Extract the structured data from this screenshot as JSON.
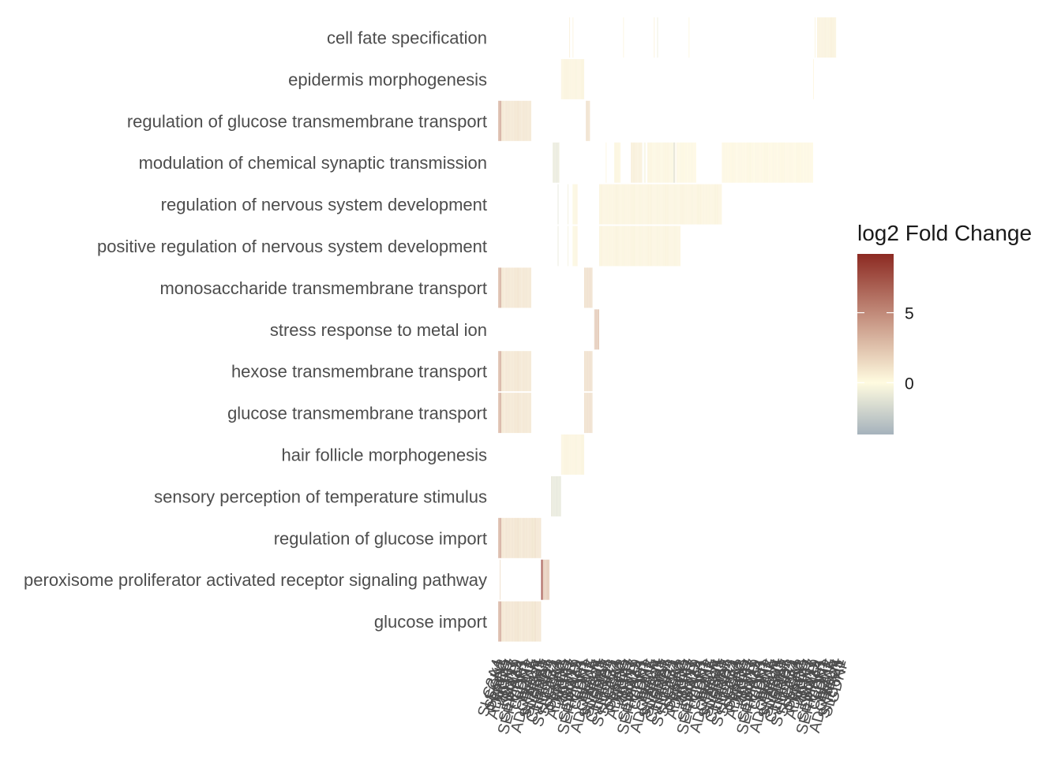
{
  "chart_data": {
    "type": "heatmap",
    "title": "",
    "xlabel": "",
    "ylabel": "",
    "legend": {
      "title": "log2 Fold Change",
      "placement": "right",
      "ticks": [
        5,
        0
      ],
      "range": [
        -3.7,
        9.2
      ],
      "colors": {
        "low": "#a5b2bc",
        "mid": "#fffbe0",
        "high": "#8c2a22"
      }
    },
    "grid": false,
    "rows": [
      {
        "term": "cell fate specification",
        "spans": [
          {
            "start": 86,
            "n": 1,
            "v": 0.6
          },
          {
            "start": 90,
            "n": 1,
            "v": 0.4
          },
          {
            "start": 151,
            "n": 1,
            "v": 0.3
          },
          {
            "start": 188,
            "n": 1,
            "v": 0.5
          },
          {
            "start": 192,
            "n": 1,
            "v": -0.8
          },
          {
            "start": 230,
            "n": 1,
            "v": 0.3
          },
          {
            "start": 382,
            "n": 1,
            "v": 0.3
          },
          {
            "start": 385,
            "n": 23,
            "v": 0.5
          }
        ]
      },
      {
        "term": "epidermis morphogenesis",
        "spans": [
          {
            "start": 76,
            "n": 28,
            "v": 0.4
          },
          {
            "start": 380,
            "n": 1,
            "v": 0.2
          }
        ]
      },
      {
        "term": "regulation of glucose transmembrane transport",
        "spans": [
          {
            "start": 0,
            "n": 4,
            "v": 3.6
          },
          {
            "start": 4,
            "n": 36,
            "v": 1.1
          },
          {
            "start": 106,
            "n": 5,
            "v": 1.4
          }
        ]
      },
      {
        "term": "modulation of chemical synaptic transmission",
        "spans": [
          {
            "start": 66,
            "n": 8,
            "v": -1.0
          },
          {
            "start": 130,
            "n": 1,
            "v": 0.3
          },
          {
            "start": 140,
            "n": 8,
            "v": 0.3
          },
          {
            "start": 160,
            "n": 14,
            "v": 0.6
          },
          {
            "start": 176,
            "n": 2,
            "v": -0.4
          },
          {
            "start": 180,
            "n": 34,
            "v": 0.3
          },
          {
            "start": 212,
            "n": 1,
            "v": -2.2
          },
          {
            "start": 215,
            "n": 24,
            "v": 0.2
          },
          {
            "start": 270,
            "n": 110,
            "v": 0.2
          }
        ]
      },
      {
        "term": "regulation of nervous system development",
        "spans": [
          {
            "start": 72,
            "n": 1,
            "v": -1.2
          },
          {
            "start": 84,
            "n": 1,
            "v": -0.6
          },
          {
            "start": 90,
            "n": 6,
            "v": 0.3
          },
          {
            "start": 122,
            "n": 98,
            "v": 0.4
          },
          {
            "start": 220,
            "n": 50,
            "v": 0.4
          }
        ]
      },
      {
        "term": "positive regulation of nervous system development",
        "spans": [
          {
            "start": 72,
            "n": 1,
            "v": -1.0
          },
          {
            "start": 84,
            "n": 1,
            "v": -0.5
          },
          {
            "start": 90,
            "n": 6,
            "v": 0.3
          },
          {
            "start": 122,
            "n": 98,
            "v": 0.4
          }
        ]
      },
      {
        "term": "monosaccharide transmembrane transport",
        "spans": [
          {
            "start": 0,
            "n": 4,
            "v": 3.4
          },
          {
            "start": 4,
            "n": 36,
            "v": 1.1
          },
          {
            "start": 104,
            "n": 10,
            "v": 1.5
          }
        ]
      },
      {
        "term": "stress response to metal ion",
        "spans": [
          {
            "start": 116,
            "n": 6,
            "v": 2.6
          }
        ]
      },
      {
        "term": "hexose transmembrane transport",
        "spans": [
          {
            "start": 0,
            "n": 4,
            "v": 3.4
          },
          {
            "start": 4,
            "n": 36,
            "v": 1.1
          },
          {
            "start": 104,
            "n": 10,
            "v": 1.5
          }
        ]
      },
      {
        "term": "glucose transmembrane transport",
        "spans": [
          {
            "start": 0,
            "n": 4,
            "v": 3.4
          },
          {
            "start": 4,
            "n": 36,
            "v": 1.1
          },
          {
            "start": 104,
            "n": 10,
            "v": 1.5
          }
        ]
      },
      {
        "term": "hair follicle morphogenesis",
        "spans": [
          {
            "start": 76,
            "n": 28,
            "v": 0.4
          }
        ]
      },
      {
        "term": "sensory perception of temperature stimulus",
        "spans": [
          {
            "start": 64,
            "n": 12,
            "v": -1.1
          }
        ]
      },
      {
        "term": "regulation of glucose import",
        "spans": [
          {
            "start": 0,
            "n": 4,
            "v": 3.6
          },
          {
            "start": 4,
            "n": 48,
            "v": 1.2
          }
        ]
      },
      {
        "term": "peroxisome proliferator activated receptor signaling pathway",
        "spans": [
          {
            "start": 2,
            "n": 1,
            "v": 1.5
          },
          {
            "start": 52,
            "n": 2,
            "v": 9.0
          },
          {
            "start": 54,
            "n": 8,
            "v": 2.4
          }
        ]
      },
      {
        "term": "glucose import",
        "spans": [
          {
            "start": 0,
            "n": 4,
            "v": 3.6
          },
          {
            "start": 4,
            "n": 48,
            "v": 1.2
          }
        ]
      }
    ],
    "genes_visible": [
      "SLC2A4",
      "SGK1",
      "SESN2",
      "PPARG",
      "ADIPOQ",
      "AQP7",
      "NRN1",
      "KRT17",
      "SOX9",
      "SEMA3A",
      "SERPINF1",
      "CDH1",
      "CLDN1",
      "SOX2",
      "BDNF",
      "ADORA2A",
      "RELN",
      "SNAP25",
      "SLC6A1",
      "GDNF",
      "CHRNA7",
      "LRRC4",
      "EGR2",
      "SYNDIG1"
    ]
  }
}
